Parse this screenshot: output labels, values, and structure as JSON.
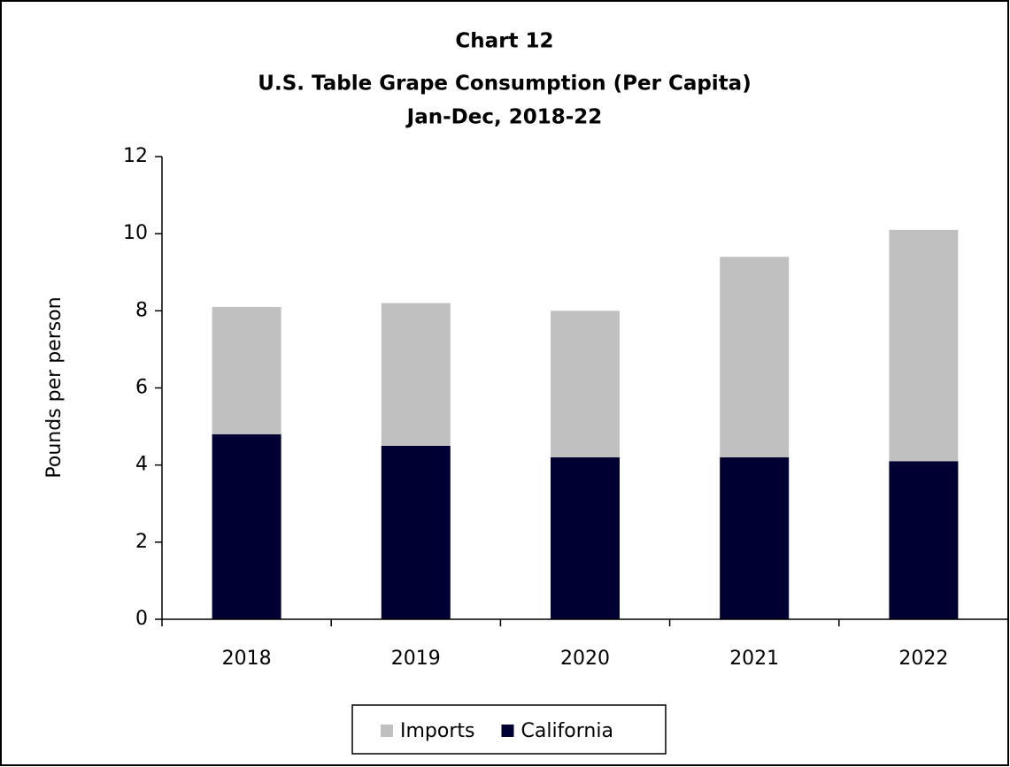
{
  "chart_data": {
    "type": "stacked_bar",
    "title": "Chart 12",
    "subtitle": [
      "U.S. Table Grape Consumption (Per Capita)",
      "Jan-Dec, 2018-22"
    ],
    "y_label": "Pounds per person",
    "categories": [
      "2018",
      "2019",
      "2020",
      "2021",
      "2022"
    ],
    "series": [
      {
        "name": "California",
        "color": "#000033",
        "values": [
          4.8,
          4.5,
          4.2,
          4.2,
          4.1
        ]
      },
      {
        "name": "Imports",
        "color": "#c0c0c0",
        "values": [
          3.3,
          3.7,
          3.8,
          5.2,
          6.0
        ]
      }
    ],
    "ylim": [
      0,
      12
    ],
    "yticks": [
      0,
      2,
      4,
      6,
      8,
      10,
      12
    ],
    "legend": "bottom"
  }
}
